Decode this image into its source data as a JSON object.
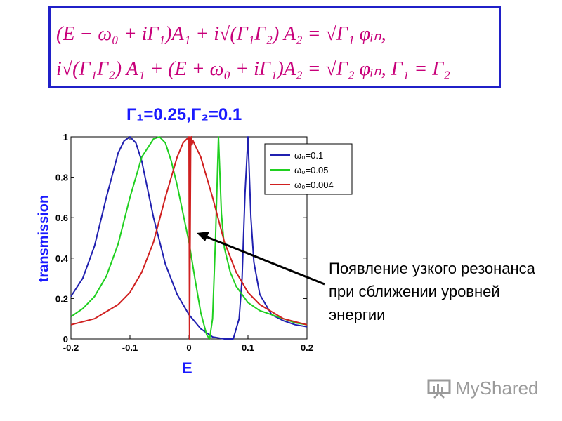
{
  "equations": {
    "line1": "(E − ω₀ + iΓ₁)A₁ + i√(Γ₁Γ₂) A₂ = √Γ₁ φᵢₙ,",
    "line2": "i√(Γ₁Γ₂) A₁ + (E + ω₀ + iΓ₁)A₂ = √Γ₂ φᵢₙ,   Γ₁ = Γ₂"
  },
  "annotation": {
    "text": "Появление узкого резонанса при сближении уровней энергии"
  },
  "watermark": {
    "text": "MyShared",
    "icon": "presentation-board-icon"
  },
  "chart_data": {
    "type": "line",
    "title": "Γ₁=0.25,Γ₂=0.1",
    "xlabel": "E",
    "ylabel": "transmission",
    "xlim": [
      -0.2,
      0.2
    ],
    "ylim": [
      0,
      1
    ],
    "xticks": [
      "-0.2",
      "-0.1",
      "0",
      "0.1",
      "0.2"
    ],
    "yticks": [
      "0",
      "0.2",
      "0.4",
      "0.6",
      "0.8",
      "1"
    ],
    "grid": false,
    "legend_position": "top-right",
    "series": [
      {
        "name": "ω₀=0.1",
        "color": "#2020b0",
        "x": [
          -0.2,
          -0.18,
          -0.16,
          -0.14,
          -0.12,
          -0.11,
          -0.1,
          -0.09,
          -0.08,
          -0.06,
          -0.04,
          -0.02,
          0.0,
          0.02,
          0.04,
          0.06,
          0.075,
          0.085,
          0.09,
          0.095,
          0.1,
          0.105,
          0.11,
          0.12,
          0.14,
          0.16,
          0.18,
          0.2
        ],
        "y": [
          0.21,
          0.3,
          0.46,
          0.7,
          0.92,
          0.98,
          1.0,
          0.97,
          0.88,
          0.6,
          0.37,
          0.22,
          0.12,
          0.05,
          0.01,
          0.0,
          0.0,
          0.1,
          0.3,
          0.72,
          1.0,
          0.6,
          0.38,
          0.22,
          0.12,
          0.09,
          0.07,
          0.06
        ]
      },
      {
        "name": "ω₀=0.05",
        "color": "#20d020",
        "x": [
          -0.2,
          -0.18,
          -0.16,
          -0.14,
          -0.12,
          -0.1,
          -0.08,
          -0.06,
          -0.05,
          -0.04,
          -0.03,
          -0.02,
          0.0,
          0.01,
          0.02,
          0.03,
          0.035,
          0.04,
          0.045,
          0.05,
          0.055,
          0.06,
          0.07,
          0.08,
          0.1,
          0.12,
          0.14,
          0.16,
          0.18,
          0.2
        ],
        "y": [
          0.11,
          0.15,
          0.21,
          0.31,
          0.47,
          0.7,
          0.9,
          0.99,
          1.0,
          0.97,
          0.88,
          0.76,
          0.48,
          0.3,
          0.13,
          0.02,
          0.0,
          0.1,
          0.5,
          1.0,
          0.62,
          0.45,
          0.33,
          0.26,
          0.18,
          0.14,
          0.12,
          0.1,
          0.08,
          0.07
        ]
      },
      {
        "name": "ω₀=0.004",
        "color": "#d02020",
        "x": [
          -0.2,
          -0.16,
          -0.12,
          -0.1,
          -0.08,
          -0.06,
          -0.04,
          -0.02,
          -0.01,
          0.0,
          0.001,
          0.003,
          0.004,
          0.005,
          0.007,
          0.01,
          0.02,
          0.04,
          0.06,
          0.08,
          0.1,
          0.12,
          0.16,
          0.2
        ],
        "y": [
          0.07,
          0.1,
          0.17,
          0.23,
          0.33,
          0.48,
          0.7,
          0.9,
          0.97,
          1.0,
          0.0,
          0.99,
          1.0,
          0.96,
          0.98,
          0.96,
          0.9,
          0.7,
          0.48,
          0.33,
          0.23,
          0.17,
          0.1,
          0.07
        ]
      }
    ]
  }
}
